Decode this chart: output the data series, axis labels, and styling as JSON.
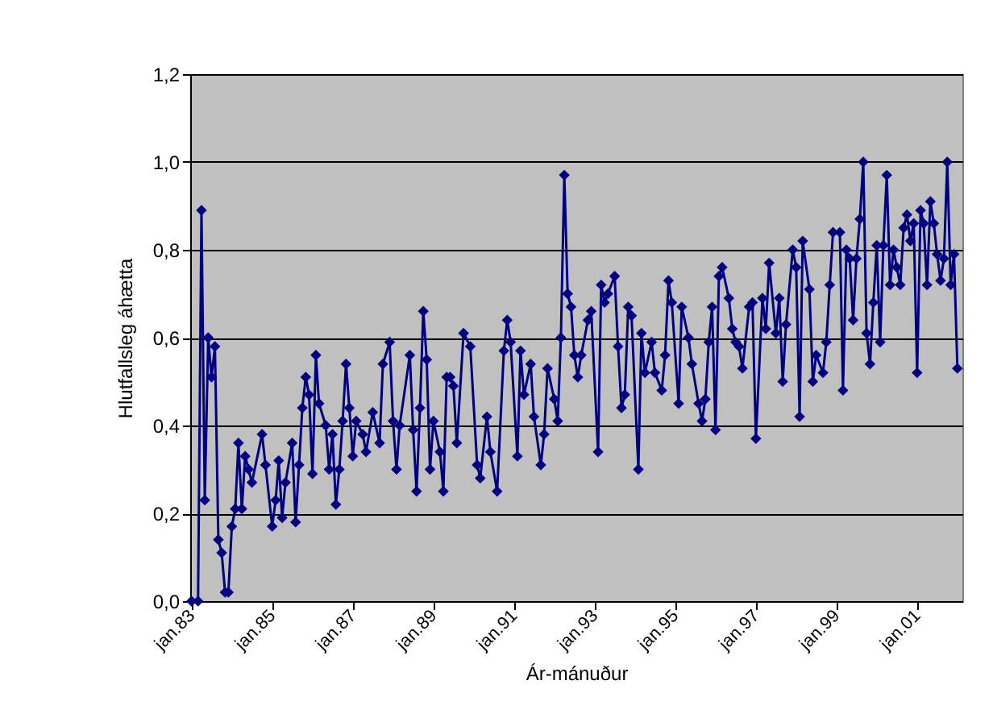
{
  "chart_data": {
    "type": "line",
    "xlabel": "Ár-mánuður",
    "ylabel": "Hlutfallsleg áhætta",
    "x": [
      "1983-01",
      "1983-03",
      "1983-04",
      "1983-05",
      "1983-06",
      "1983-07",
      "1983-08",
      "1983-09",
      "1983-10",
      "1983-11",
      "1983-12",
      "1984-01",
      "1984-02",
      "1984-03",
      "1984-04",
      "1984-05",
      "1984-06",
      "1984-07",
      "1984-10",
      "1984-11",
      "1985-01",
      "1985-02",
      "1985-03",
      "1985-04",
      "1985-05",
      "1985-07",
      "1985-08",
      "1985-09",
      "1985-10",
      "1985-11",
      "1985-12",
      "1986-01",
      "1986-02",
      "1986-03",
      "1986-05",
      "1986-06",
      "1986-07",
      "1986-08",
      "1986-09",
      "1986-10",
      "1986-11",
      "1986-12",
      "1987-01",
      "1987-02",
      "1987-04",
      "1987-05",
      "1987-07",
      "1987-09",
      "1987-10",
      "1987-12",
      "1988-01",
      "1988-02",
      "1988-03",
      "1988-06",
      "1988-07",
      "1988-08",
      "1988-09",
      "1988-10",
      "1988-11",
      "1988-12",
      "1989-01",
      "1989-03",
      "1989-04",
      "1989-05",
      "1989-06",
      "1989-07",
      "1989-08",
      "1989-10",
      "1989-12",
      "1990-02",
      "1990-03",
      "1990-05",
      "1990-06",
      "1990-08",
      "1990-10",
      "1990-11",
      "1990-12",
      "1991-02",
      "1991-03",
      "1991-04",
      "1991-06",
      "1991-07",
      "1991-09",
      "1991-10",
      "1991-11",
      "1992-01",
      "1992-02",
      "1992-03",
      "1992-04",
      "1992-05",
      "1992-06",
      "1992-07",
      "1992-08",
      "1992-09",
      "1992-11",
      "1992-12",
      "1993-02",
      "1993-03",
      "1993-04",
      "1993-05",
      "1993-07",
      "1993-08",
      "1993-09",
      "1993-10",
      "1993-11",
      "1993-12",
      "1994-02",
      "1994-03",
      "1994-04",
      "1994-06",
      "1994-07",
      "1994-09",
      "1994-10",
      "1994-11",
      "1994-12",
      "1995-02",
      "1995-03",
      "1995-05",
      "1995-06",
      "1995-08",
      "1995-09",
      "1995-10",
      "1995-11",
      "1995-12",
      "1996-01",
      "1996-02",
      "1996-03",
      "1996-05",
      "1996-06",
      "1996-07",
      "1996-08",
      "1996-09",
      "1996-11",
      "1996-12",
      "1997-01",
      "1997-03",
      "1997-04",
      "1997-05",
      "1997-07",
      "1997-08",
      "1997-09",
      "1997-10",
      "1997-12",
      "1998-01",
      "1998-02",
      "1998-03",
      "1998-05",
      "1998-06",
      "1998-07",
      "1998-09",
      "1998-10",
      "1998-11",
      "1998-12",
      "1999-02",
      "1999-03",
      "1999-04",
      "1999-05",
      "1999-06",
      "1999-07",
      "1999-08",
      "1999-09",
      "1999-10",
      "1999-11",
      "1999-12",
      "2000-01",
      "2000-02",
      "2000-03",
      "2000-04",
      "2000-05",
      "2000-06",
      "2000-07",
      "2000-08",
      "2000-09",
      "2000-10",
      "2000-11",
      "2000-12",
      "2001-01",
      "2001-02",
      "2001-03",
      "2001-04",
      "2001-05",
      "2001-06",
      "2001-07",
      "2001-08",
      "2001-09",
      "2001-10",
      "2001-11",
      "2001-12",
      "2002-01"
    ],
    "series": [
      {
        "color": "#000080",
        "values": [
          0,
          0,
          0.89,
          0.23,
          0.6,
          0.51,
          0.58,
          0.14,
          0.11,
          0.02,
          0.02,
          0.17,
          0.21,
          0.36,
          0.21,
          0.33,
          0.3,
          0.27,
          0.38,
          0.31,
          0.17,
          0.23,
          0.32,
          0.19,
          0.27,
          0.36,
          0.18,
          0.31,
          0.44,
          0.51,
          0.47,
          0.29,
          0.56,
          0.45,
          0.4,
          0.3,
          0.38,
          0.22,
          0.3,
          0.41,
          0.54,
          0.44,
          0.33,
          0.41,
          0.38,
          0.34,
          0.43,
          0.36,
          0.54,
          0.59,
          0.41,
          0.3,
          0.4,
          0.56,
          0.39,
          0.25,
          0.44,
          0.66,
          0.55,
          0.3,
          0.41,
          0.34,
          0.25,
          0.51,
          0.51,
          0.49,
          0.36,
          0.61,
          0.58,
          0.31,
          0.28,
          0.42,
          0.34,
          0.25,
          0.57,
          0.64,
          0.59,
          0.33,
          0.57,
          0.47,
          0.54,
          0.42,
          0.31,
          0.38,
          0.53,
          0.46,
          0.41,
          0.6,
          0.97,
          0.7,
          0.67,
          0.56,
          0.51,
          0.56,
          0.64,
          0.66,
          0.34,
          0.72,
          0.68,
          0.7,
          0.74,
          0.58,
          0.44,
          0.47,
          0.67,
          0.65,
          0.3,
          0.61,
          0.52,
          0.59,
          0.52,
          0.48,
          0.56,
          0.73,
          0.68,
          0.45,
          0.67,
          0.6,
          0.54,
          0.45,
          0.41,
          0.46,
          0.59,
          0.67,
          0.39,
          0.74,
          0.76,
          0.69,
          0.62,
          0.59,
          0.58,
          0.53,
          0.67,
          0.68,
          0.37,
          0.69,
          0.62,
          0.77,
          0.61,
          0.69,
          0.5,
          0.63,
          0.8,
          0.76,
          0.42,
          0.82,
          0.71,
          0.5,
          0.56,
          0.52,
          0.59,
          0.72,
          0.84,
          0.84,
          0.48,
          0.8,
          0.78,
          0.64,
          0.78,
          0.87,
          1.0,
          0.61,
          0.54,
          0.68,
          0.81,
          0.59,
          0.81,
          0.97,
          0.72,
          0.8,
          0.76,
          0.72,
          0.85,
          0.88,
          0.82,
          0.86,
          0.52,
          0.89,
          0.86,
          0.72,
          0.91,
          0.86,
          0.79,
          0.73,
          0.78,
          1.0,
          0.72,
          0.79,
          0.53
        ]
      }
    ],
    "xlim": [
      "1982-12-20",
      "2002-02-15"
    ],
    "xticks": [
      {
        "value": "1983-01",
        "label": "jan.83"
      },
      {
        "value": "1985-01",
        "label": "jan.85"
      },
      {
        "value": "1987-01",
        "label": "jan.87"
      },
      {
        "value": "1989-01",
        "label": "jan.89"
      },
      {
        "value": "1991-01",
        "label": "jan.91"
      },
      {
        "value": "1993-01",
        "label": "jan.93"
      },
      {
        "value": "1995-01",
        "label": "jan.95"
      },
      {
        "value": "1997-01",
        "label": "jan.97"
      },
      {
        "value": "1999-01",
        "label": "jan.99"
      },
      {
        "value": "2001-01",
        "label": "jan.01"
      }
    ],
    "ylim": [
      0,
      1.2
    ],
    "yticks": [
      {
        "value": 0,
        "label": "0,0"
      },
      {
        "value": 0.2,
        "label": "0,2"
      },
      {
        "value": 0.4,
        "label": "0,4"
      },
      {
        "value": 0.6,
        "label": "0,6"
      },
      {
        "value": 0.8,
        "label": "0,8"
      },
      {
        "value": 1.0,
        "label": "1,0"
      },
      {
        "value": 1.2,
        "label": "1,2"
      }
    ],
    "grid": "y",
    "marker": "diamond",
    "line_style": "solid"
  }
}
